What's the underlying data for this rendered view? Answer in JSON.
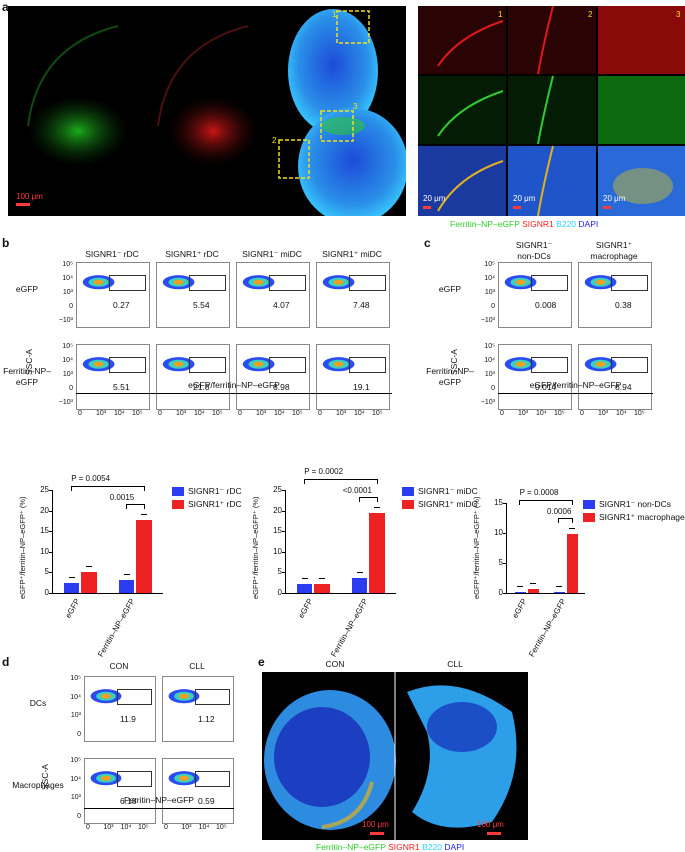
{
  "panels": {
    "a": "a",
    "b": "b",
    "c": "c",
    "d": "d",
    "e": "e"
  },
  "a": {
    "scale_main": "100 μm",
    "inset_nums": [
      "1",
      "2",
      "3"
    ],
    "inset_scale": "20 μm",
    "legend": [
      {
        "text": "Ferritin–NP–eGFP",
        "color": "#2ecc2e"
      },
      {
        "text": "SIGNR1",
        "color": "#ff2020"
      },
      {
        "text": "B220",
        "color": "#2ad4ff"
      },
      {
        "text": "DAPI",
        "color": "#2020ff"
      }
    ]
  },
  "b": {
    "columns": [
      "SIGNR1⁻ rDC",
      "SIGNR1⁺ rDC",
      "SIGNR1⁻ miDC",
      "SIGNR1⁺ miDC"
    ],
    "rows": [
      "eGFP",
      "Ferritin–NP–\neGFP"
    ],
    "values": [
      [
        "0.27",
        "5.54",
        "4.07",
        "7.48"
      ],
      [
        "5.51",
        "21.8",
        "6.98",
        "19.1"
      ]
    ],
    "yaxis": "SSC-A",
    "xaxis": "eGFP/ferritin–NP–eGFP",
    "yticks": [
      "10⁵",
      "10⁴",
      "10³",
      "0",
      "−10³"
    ],
    "xticks": [
      "0",
      "10³",
      "10⁴",
      "10⁵"
    ]
  },
  "c": {
    "columns": [
      "SIGNR1⁻\nnon-DCs",
      "SIGNR1⁺\nmacrophage"
    ],
    "rows": [
      "eGFP",
      "Ferritin–NP–\neGFP"
    ],
    "values": [
      [
        "0.008",
        "0.38"
      ],
      [
        "0.014",
        "6.94"
      ]
    ],
    "yaxis": "SSC-A",
    "xaxis": "eGFP/ferritin–NP–eGFP",
    "yticks": [
      "10⁵",
      "10⁴",
      "10³",
      "0",
      "−10³"
    ],
    "xticks": [
      "0",
      "10³",
      "10⁴",
      "10⁵"
    ]
  },
  "d": {
    "columns": [
      "CON",
      "CLL"
    ],
    "rows": [
      "DCs",
      "Macrophages"
    ],
    "values": [
      [
        "11.9",
        "1.12"
      ],
      [
        "6.18",
        "0.59"
      ]
    ],
    "yaxis": "SSC-A",
    "xaxis": "Ferritin–NP–eGFP",
    "yticks": [
      "10⁵",
      "10⁴",
      "10³",
      "0"
    ],
    "xticks": [
      "0",
      "10³",
      "10⁴",
      "10⁵"
    ]
  },
  "e": {
    "columns": [
      "CON",
      "CLL"
    ],
    "scale": "100 μm",
    "legend": [
      {
        "text": "Ferritin–NP–eGFP",
        "color": "#2ecc2e"
      },
      {
        "text": "SIGNR1",
        "color": "#ff2020"
      },
      {
        "text": "B220",
        "color": "#2ad4ff"
      },
      {
        "text": "DAPI",
        "color": "#2020ff"
      }
    ]
  },
  "chart_data": [
    {
      "type": "bar",
      "ylabel": "eGFP⁺/ferritin–NP–eGFP⁺ (%)",
      "ylim": [
        0,
        25
      ],
      "yticks": [
        "0",
        "5",
        "10",
        "15",
        "20",
        "25"
      ],
      "categories": [
        "eGFP",
        "Ferritin–NP–eGFP"
      ],
      "series": [
        {
          "name": "SIGNR1⁻ rDC",
          "color": "#2b3cf0",
          "values": [
            2.5,
            3.2
          ]
        },
        {
          "name": "SIGNR1⁺ rDC",
          "color": "#ee2222",
          "values": [
            5.0,
            17.8
          ]
        }
      ],
      "annotations": [
        "P = 0.0054",
        "0.0015"
      ]
    },
    {
      "type": "bar",
      "ylabel": "eGFP⁺/ferritin–NP–eGFP⁺ (%)",
      "ylim": [
        0,
        25
      ],
      "yticks": [
        "0",
        "5",
        "10",
        "15",
        "20",
        "25"
      ],
      "categories": [
        "eGFP",
        "Ferritin–NP–eGFP"
      ],
      "series": [
        {
          "name": "SIGNR1⁻ miDC",
          "color": "#2b3cf0",
          "values": [
            2.3,
            3.6
          ]
        },
        {
          "name": "SIGNR1⁺ miDC",
          "color": "#ee2222",
          "values": [
            2.3,
            19.5
          ]
        }
      ],
      "annotations": [
        "P = 0.0002",
        "<0.0001"
      ]
    },
    {
      "type": "bar",
      "ylabel": "eGFP⁺/ferritin–NP–eGFP⁺ (%)",
      "ylim": [
        0,
        15
      ],
      "yticks": [
        "0",
        "5",
        "10",
        "15"
      ],
      "categories": [
        "eGFP",
        "Ferritin–NP–eGFP"
      ],
      "series": [
        {
          "name": "SIGNR1⁻ non-DCs",
          "color": "#2b3cf0",
          "values": [
            0.02,
            0.02
          ]
        },
        {
          "name": "SIGNR1⁺ macrophages",
          "color": "#ee2222",
          "values": [
            0.6,
            9.9
          ]
        }
      ],
      "annotations": [
        "P = 0.0008",
        "0.0006"
      ]
    }
  ]
}
